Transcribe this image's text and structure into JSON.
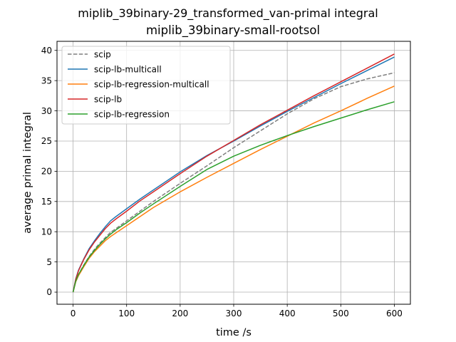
{
  "chart_data": {
    "type": "line",
    "suptitle": "miplib_39binary-29_transformed_van-primal integral",
    "title": "miplib_39binary-small-rootsol",
    "xlabel": "time /s",
    "ylabel": "average primal integral",
    "xlim": [
      -30,
      630
    ],
    "ylim": [
      -2,
      41.5
    ],
    "xticks": [
      0,
      100,
      200,
      300,
      400,
      500,
      600
    ],
    "yticks": [
      0,
      5,
      10,
      15,
      20,
      25,
      30,
      35,
      40
    ],
    "grid": true,
    "legend_position": "top-left",
    "series": [
      {
        "name": "scip",
        "color": "#7f7f7f",
        "dash": true,
        "x": [
          0,
          5,
          10,
          20,
          30,
          40,
          50,
          60,
          70,
          80,
          100,
          125,
          150,
          200,
          250,
          300,
          350,
          400,
          450,
          500,
          550,
          600
        ],
        "y": [
          0,
          1.8,
          2.9,
          4.5,
          5.9,
          7.1,
          8.1,
          9.0,
          9.9,
          10.5,
          11.8,
          13.4,
          15.0,
          18.0,
          20.9,
          23.9,
          26.7,
          29.5,
          32.0,
          34.0,
          35.3,
          36.3
        ]
      },
      {
        "name": "scip-lb-multicall",
        "color": "#1f77b4",
        "dash": false,
        "x": [
          0,
          5,
          10,
          20,
          30,
          40,
          50,
          60,
          70,
          80,
          100,
          125,
          150,
          200,
          250,
          300,
          350,
          400,
          450,
          500,
          550,
          600
        ],
        "y": [
          0,
          2.2,
          3.6,
          5.5,
          7.2,
          8.5,
          9.7,
          10.8,
          11.8,
          12.5,
          13.8,
          15.4,
          16.9,
          19.9,
          22.6,
          25.0,
          27.5,
          29.9,
          32.2,
          34.5,
          36.7,
          38.9
        ]
      },
      {
        "name": "scip-lb-regression-multicall",
        "color": "#ff7f0e",
        "dash": false,
        "x": [
          0,
          5,
          10,
          20,
          30,
          40,
          50,
          60,
          70,
          80,
          100,
          125,
          150,
          200,
          250,
          300,
          350,
          400,
          450,
          500,
          550,
          600
        ],
        "y": [
          0,
          1.7,
          2.7,
          4.2,
          5.6,
          6.7,
          7.6,
          8.5,
          9.2,
          9.8,
          11.0,
          12.5,
          14.0,
          16.6,
          19.0,
          21.3,
          23.6,
          25.8,
          28.0,
          30.0,
          32.1,
          34.1
        ]
      },
      {
        "name": "scip-lb",
        "color": "#d62728",
        "dash": false,
        "x": [
          0,
          5,
          10,
          20,
          30,
          40,
          50,
          60,
          70,
          80,
          100,
          125,
          150,
          200,
          250,
          300,
          350,
          400,
          450,
          500,
          550,
          600
        ],
        "y": [
          0,
          2.1,
          3.5,
          5.4,
          7.0,
          8.3,
          9.4,
          10.5,
          11.4,
          12.1,
          13.4,
          15.1,
          16.6,
          19.6,
          22.5,
          25.1,
          27.7,
          30.1,
          32.5,
          34.8,
          37.1,
          39.4
        ]
      },
      {
        "name": "scip-lb-regression",
        "color": "#2ca02c",
        "dash": false,
        "x": [
          0,
          5,
          10,
          20,
          30,
          40,
          50,
          60,
          70,
          80,
          100,
          125,
          150,
          200,
          250,
          300,
          350,
          400,
          450,
          500,
          550,
          600
        ],
        "y": [
          0,
          1.8,
          2.9,
          4.4,
          5.8,
          6.9,
          7.9,
          8.8,
          9.6,
          10.3,
          11.5,
          13.1,
          14.6,
          17.5,
          20.3,
          22.5,
          24.3,
          25.9,
          27.4,
          28.8,
          30.2,
          31.5
        ]
      }
    ]
  }
}
